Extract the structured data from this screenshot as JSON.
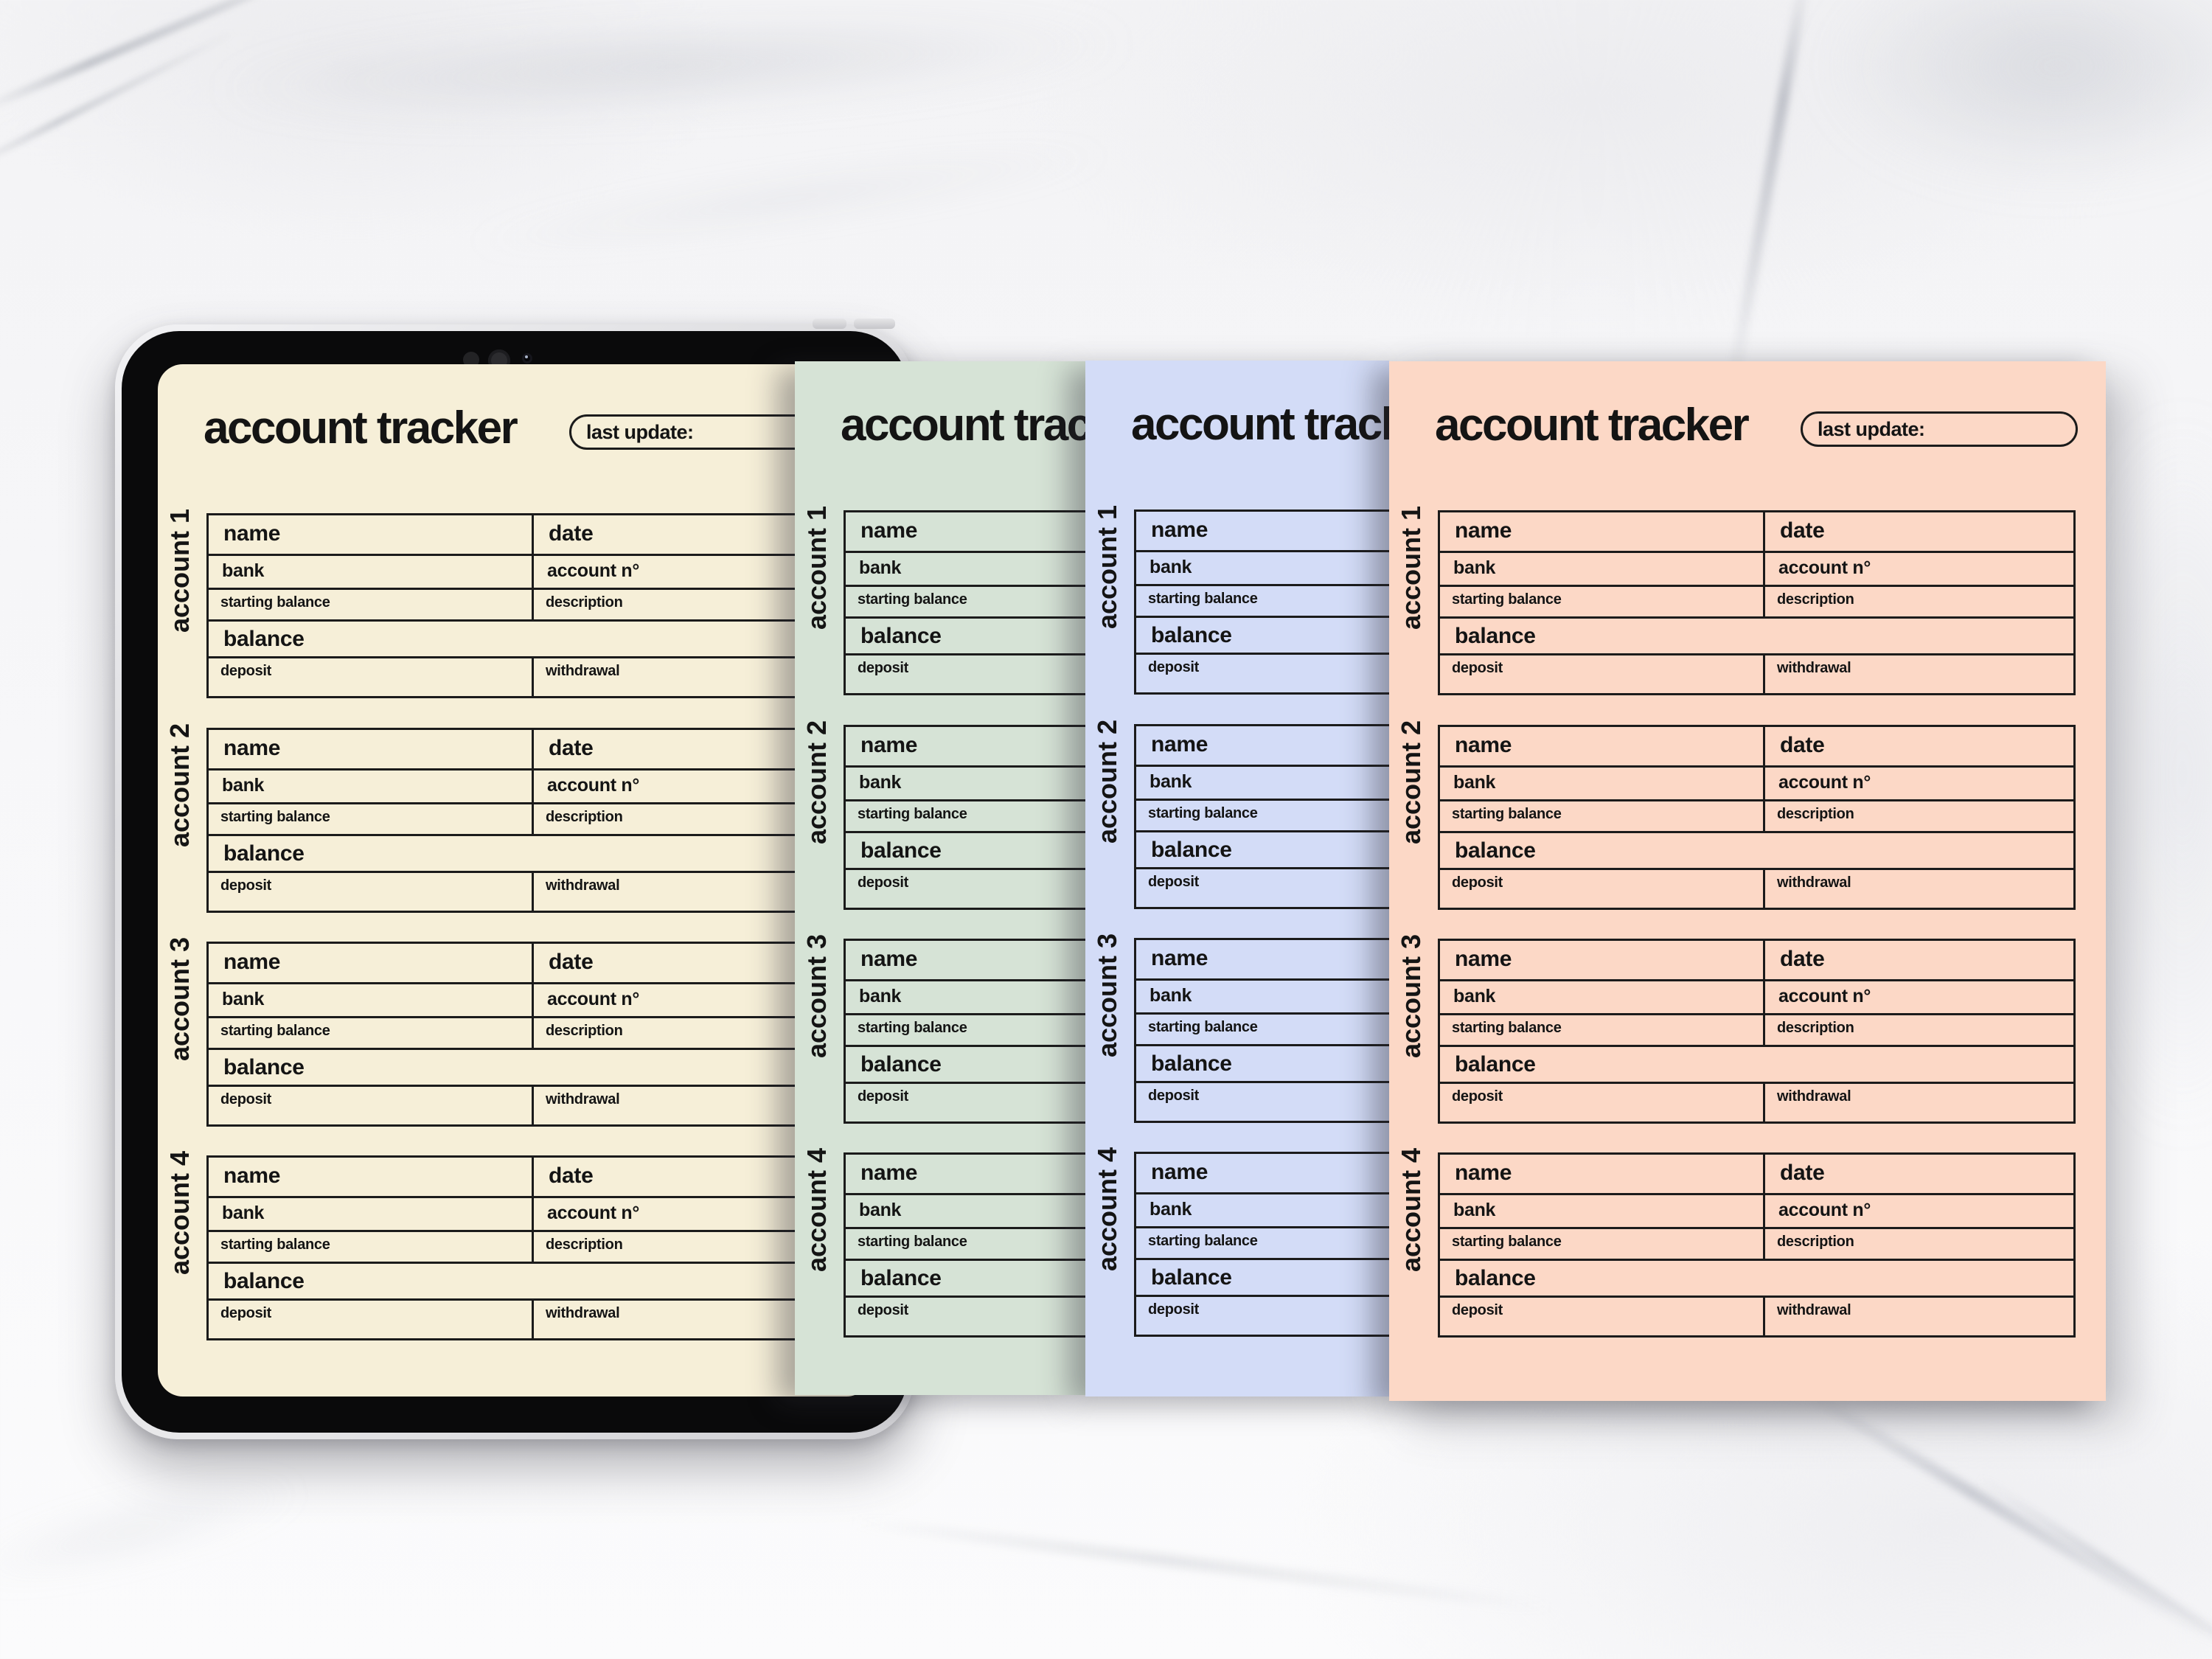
{
  "sheet_template": {
    "title": "account tracker",
    "last_update_label": "last update:",
    "account_labels": [
      "account 1",
      "account 2",
      "account 3",
      "account 4"
    ],
    "fields": {
      "name": "name",
      "date": "date",
      "bank": "bank",
      "account_no": "account n°",
      "starting_balance": "starting balance",
      "description": "description",
      "balance": "balance",
      "deposit": "deposit",
      "withdrawal": "withdrawal"
    }
  },
  "sheets": [
    {
      "id": "cream",
      "surface": "tablet-screen",
      "color": "#f6efd8"
    },
    {
      "id": "green",
      "surface": "paper",
      "color": "#d6e3d6"
    },
    {
      "id": "blue",
      "surface": "paper",
      "color": "#d3dcf7"
    },
    {
      "id": "pink",
      "surface": "paper",
      "color": "#fcd8c6"
    }
  ],
  "tablet": {
    "icons": [
      "sensor-dot-icon",
      "front-camera-icon",
      "camera-lens-icon"
    ]
  },
  "colors": {
    "line": "#1b1b1b",
    "text": "#141414",
    "tablet_bezel": "#0a0a0b",
    "tablet_frame": "#e5e5e8",
    "marble_base": "#f6f6f8",
    "marble_vein": "#9aa0ae"
  }
}
